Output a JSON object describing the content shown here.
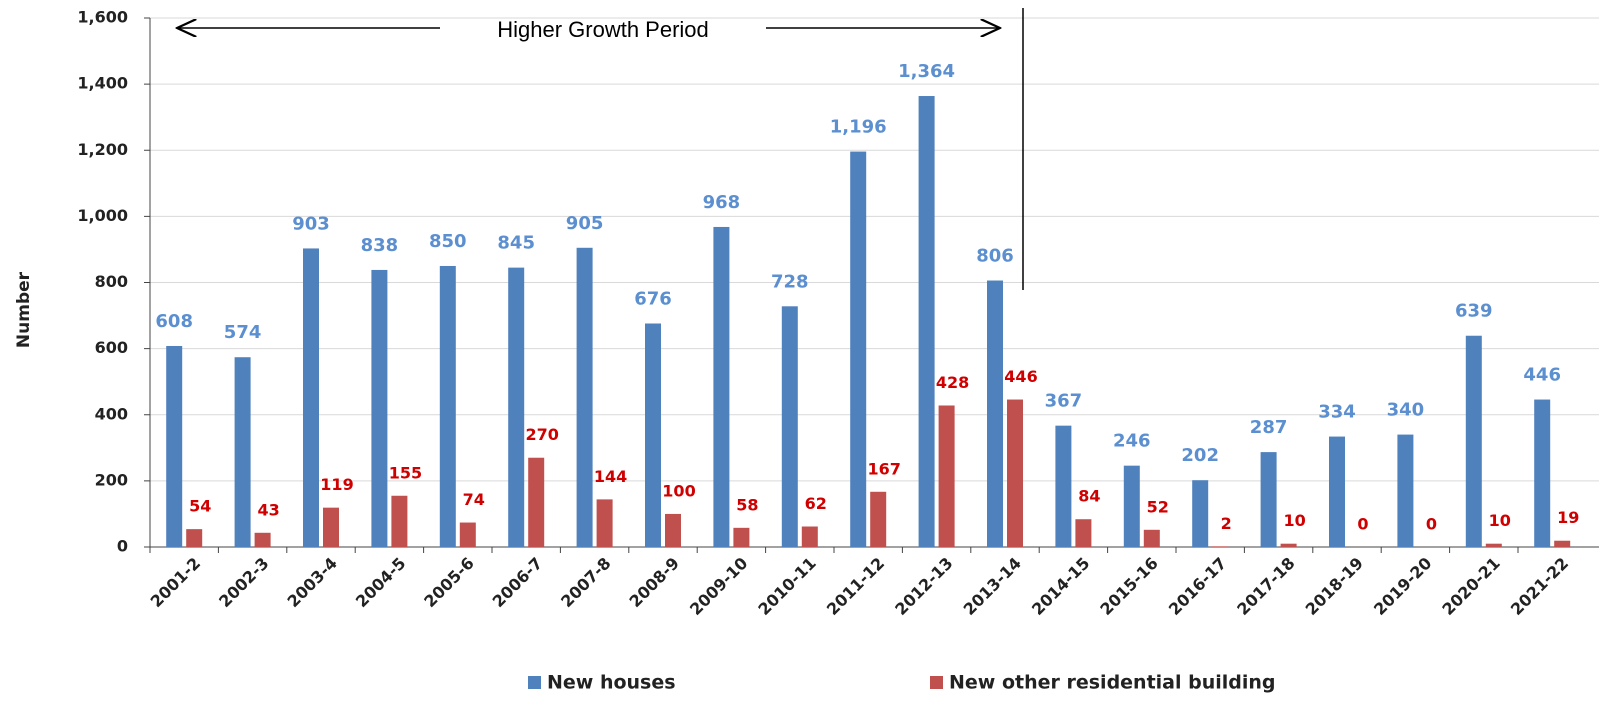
{
  "chart_data": {
    "type": "bar",
    "y_label": "Number",
    "annotation": "Higher Growth Period",
    "categories": [
      "2001-2",
      "2002-3",
      "2003-4",
      "2004-5",
      "2005-6",
      "2006-7",
      "2007-8",
      "2008-9",
      "2009-10",
      "2010-11",
      "2011-12",
      "2012-13",
      "2013-14",
      "2014-15",
      "2015-16",
      "2016-17",
      "2017-18",
      "2018-19",
      "2019-20",
      "2020-21",
      "2021-22"
    ],
    "series": [
      {
        "name": "New houses",
        "color": "#4f81bd",
        "label_color": "#5b8fd0",
        "values": [
          608,
          574,
          903,
          838,
          850,
          845,
          905,
          676,
          968,
          728,
          1196,
          1364,
          806,
          367,
          246,
          202,
          287,
          334,
          340,
          639,
          446
        ],
        "value_labels": [
          "608",
          "574",
          "903",
          "838",
          "850",
          "845",
          "905",
          "676",
          "968",
          "728",
          "1,196",
          "1,364",
          "806",
          "367",
          "246",
          "202",
          "287",
          "334",
          "340",
          "639",
          "446"
        ]
      },
      {
        "name": "New other residential building",
        "color": "#c0504d",
        "label_color": "#d00000",
        "values": [
          54,
          43,
          119,
          155,
          74,
          270,
          144,
          100,
          58,
          62,
          167,
          428,
          446,
          84,
          52,
          2,
          10,
          0,
          0,
          10,
          19
        ]
      }
    ],
    "ylim": [
      0,
      1600
    ],
    "yticks": [
      0,
      200,
      400,
      600,
      800,
      {
        "value": 1000,
        "label": "1,000"
      },
      {
        "value": 1200,
        "label": "1,200"
      },
      {
        "value": 1400,
        "label": "1,400"
      },
      {
        "value": 1600,
        "label": "1,600"
      }
    ],
    "grid": true,
    "legend": "bottom"
  }
}
